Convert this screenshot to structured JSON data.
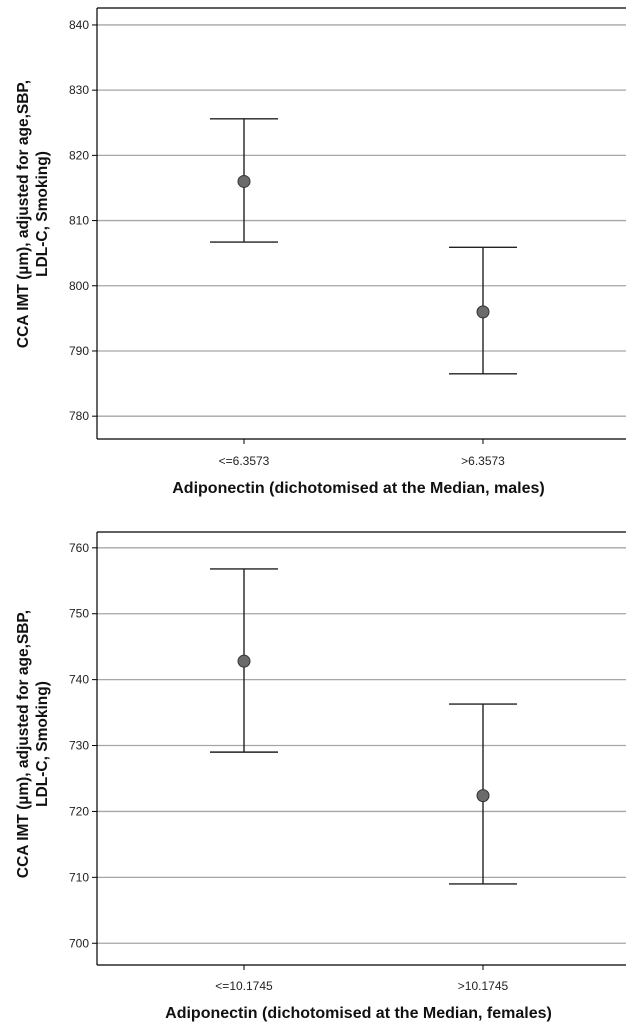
{
  "chart_data": [
    {
      "type": "scatter",
      "categories": [
        "<=6.3573",
        ">6.3573"
      ],
      "values": [
        816.0,
        796.0
      ],
      "error_low": [
        806.7,
        786.5
      ],
      "error_high": [
        825.6,
        805.9
      ],
      "xlabel": "Adiponectin (dichotomised at the Median, males)",
      "ylabel_lines": [
        "CCA IMT (µm), adjusted for age,SBP,",
        "LDL-C, Smoking)"
      ],
      "yticks": [
        780,
        790,
        800,
        810,
        820,
        830,
        840
      ],
      "ylim": [
        776.5,
        842.6
      ],
      "grid": true
    },
    {
      "type": "scatter",
      "categories": [
        "<=10.1745",
        ">10.1745"
      ],
      "values": [
        742.8,
        722.4
      ],
      "error_low": [
        729.0,
        709.0
      ],
      "error_high": [
        756.8,
        736.3
      ],
      "xlabel": "Adiponectin (dichotomised at the Median, females)",
      "ylabel_lines": [
        "CCA IMT (µm), adjusted for age,SBP,",
        "LDL-C, Smoking)"
      ],
      "yticks": [
        700,
        710,
        720,
        730,
        740,
        750,
        760
      ],
      "ylim": [
        696.7,
        762.4
      ],
      "grid": true
    }
  ],
  "colors": {
    "grid": "#a6a6a6",
    "axis": "#000000",
    "marker_fill": "#6b6b6b",
    "marker_stroke": "#333333",
    "errorbar": "#222222"
  }
}
